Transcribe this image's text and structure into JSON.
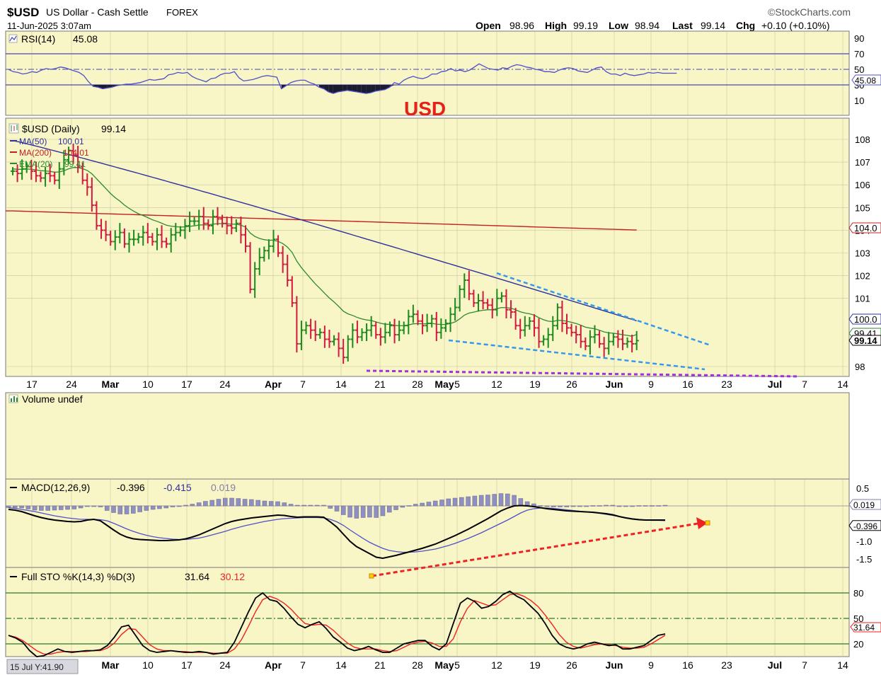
{
  "header": {
    "symbol": "$USD",
    "name": "US Dollar - Cash Settle",
    "exchange": "FOREX",
    "source": "©StockCharts.com",
    "datetime": "11-Jun-2025 3:07am",
    "quote": {
      "open_label": "Open",
      "open": "98.96",
      "high_label": "High",
      "high": "99.19",
      "low_label": "Low",
      "low": "98.94",
      "last_label": "Last",
      "last": "99.14",
      "chg_label": "Chg",
      "chg": "+0.10 (+0.10%)"
    }
  },
  "annotation": "USD",
  "bottom_tag": "15 Jul Y:41.90",
  "colors": {
    "bg": "#f8f5c6",
    "grid": "#c9c6a2",
    "up": "#1d8a1d",
    "down": "#d01a40",
    "ma50": "#3030a0",
    "ma200": "#c42020",
    "ema20": "#2e8a2e",
    "trend": "#3399ee",
    "support": "#a030e0",
    "arrow": "#ee2222",
    "rsi": "#5050c8",
    "macd": "#000000",
    "signal": "#5050c8",
    "hist": "#8f8fc0",
    "stoK": "#000000",
    "stoD": "#ee2222"
  },
  "chart_data": [
    {
      "type": "line",
      "panel": "rsi",
      "legend": [
        "RSI(14)",
        "45.08"
      ],
      "ylim": [
        0,
        100
      ],
      "yticks": [
        90,
        70,
        50,
        30,
        10
      ],
      "levels": [
        70,
        50,
        30
      ],
      "last_label": "45.08",
      "values": [
        50,
        47,
        46,
        44,
        45,
        47,
        46,
        49,
        51,
        50,
        51,
        53,
        52,
        50,
        48,
        46,
        42,
        34,
        28,
        27,
        25,
        26,
        27,
        29,
        30,
        31,
        31,
        32,
        33,
        35,
        37,
        36,
        37,
        38,
        43,
        44,
        46,
        45,
        46,
        41,
        38,
        36,
        34,
        38,
        39,
        43,
        45,
        45,
        47,
        39,
        35,
        36,
        37,
        39,
        41,
        42,
        41,
        40,
        25,
        29,
        33,
        35,
        36,
        36,
        33,
        31,
        27,
        25,
        21,
        19,
        21,
        22,
        23,
        22,
        21,
        20,
        19,
        20,
        22,
        23,
        24,
        27,
        33,
        31,
        36,
        39,
        41,
        39,
        38,
        40,
        44,
        44,
        47,
        48,
        51,
        48,
        49,
        47,
        49,
        53,
        57,
        54,
        51,
        50,
        49,
        52,
        51,
        54,
        56,
        55,
        53,
        52,
        50,
        49,
        47,
        47,
        46,
        49,
        51,
        52,
        51,
        48,
        47,
        46,
        49,
        52,
        53,
        47,
        44,
        44,
        42,
        45,
        43,
        42,
        43,
        44,
        46,
        45,
        46,
        45,
        45,
        45,
        45
      ]
    },
    {
      "type": "candlestick",
      "panel": "price",
      "legend": [
        "$USD (Daily)",
        "99.14"
      ],
      "ylim": [
        97.8,
        108.3
      ],
      "yticks": [
        108,
        107,
        106,
        105,
        104,
        103,
        102,
        101,
        98
      ],
      "x_ticks": [
        "17",
        "24",
        "Mar",
        "10",
        "17",
        "24",
        "Apr",
        "7",
        "14",
        "21",
        "28",
        "May",
        "5",
        "12",
        "19",
        "26",
        "Jun",
        "9",
        "16",
        "23",
        "Jul",
        "7",
        "14"
      ],
      "close": [
        106.6,
        106.5,
        106.7,
        106.8,
        106.6,
        106.4,
        106.3,
        106.5,
        106.4,
        106.2,
        106.7,
        107.1,
        107.5,
        107.3,
        106.8,
        106.2,
        105.9,
        105.1,
        104.2,
        104.0,
        103.8,
        103.5,
        103.7,
        103.9,
        103.4,
        103.6,
        103.6,
        103.7,
        103.9,
        103.7,
        103.5,
        103.8,
        103.5,
        103.4,
        103.8,
        103.9,
        104.0,
        104.2,
        104.4,
        104.4,
        104.6,
        104.3,
        104.2,
        104.6,
        104.5,
        104.3,
        104.2,
        104.1,
        104.3,
        103.8,
        103.3,
        101.4,
        102.3,
        102.8,
        103.1,
        103.3,
        103.6,
        103.0,
        102.5,
        101.8,
        100.8,
        99.0,
        99.6,
        99.8,
        99.6,
        99.4,
        99.5,
        99.2,
        99.1,
        99.2,
        98.8,
        98.4,
        99.2,
        99.6,
        99.3,
        99.5,
        99.6,
        99.8,
        99.4,
        99.3,
        99.5,
        99.8,
        99.4,
        99.6,
        99.8,
        100.2,
        100.3,
        100.0,
        99.8,
        99.9,
        100.1,
        99.5,
        99.7,
        99.9,
        100.3,
        100.6,
        101.4,
        101.8,
        101.2,
        100.8,
        100.9,
        100.8,
        100.7,
        100.5,
        101.0,
        101.1,
        100.5,
        100.4,
        99.8,
        99.6,
        99.8,
        100.0,
        99.7,
        99.1,
        99.2,
        99.4,
        99.8,
        100.6,
        99.9,
        99.7,
        99.5,
        99.4,
        99.1,
        98.9,
        99.3,
        99.4,
        99.0,
        98.8,
        99.1,
        99.3,
        99.2,
        99.0,
        99.1,
        99.0,
        99.14
      ],
      "series": [
        {
          "name": "MA(50)",
          "last": "100.01",
          "start": 107.95,
          "end": 100.01
        },
        {
          "name": "MA(200)",
          "last": "104.01",
          "start": 104.85,
          "end": 104.01
        },
        {
          "name": "EMA(20)",
          "last": "99.41",
          "start": 106.7,
          "end": 99.41
        }
      ],
      "right_labels": {
        "ma200": "104.0",
        "ma50": "100.0",
        "ema": "99.41",
        "last": "99.14"
      },
      "trendlines": [
        {
          "from": [
            102.0,
            102
          ],
          "to": [
            177,
            99.0
          ]
        },
        {
          "from": [
            92,
            99.2
          ],
          "to": [
            176,
            98.0
          ]
        }
      ],
      "support_level": 97.85
    },
    {
      "type": "bar",
      "panel": "volume",
      "legend": [
        "Volume undef"
      ],
      "values": []
    },
    {
      "type": "line",
      "panel": "macd",
      "legend": [
        "MACD(12,26,9)",
        "-0.396",
        "-0.415",
        "0.019"
      ],
      "ylim": [
        -1.7,
        0.7
      ],
      "yticks": [
        "0.5",
        "-1.0",
        "-1.5"
      ],
      "right_labels": {
        "hist": "0.019",
        "macd": "-0.396"
      },
      "macd": [
        -0.1,
        -0.12,
        -0.16,
        -0.22,
        -0.28,
        -0.33,
        -0.37,
        -0.4,
        -0.42,
        -0.44,
        -0.45,
        -0.44,
        -0.4,
        -0.38,
        -0.42,
        -0.55,
        -0.68,
        -0.8,
        -0.88,
        -0.93,
        -0.95,
        -0.96,
        -0.97,
        -0.98,
        -0.98,
        -0.97,
        -0.96,
        -0.93,
        -0.88,
        -0.82,
        -0.74,
        -0.66,
        -0.58,
        -0.5,
        -0.44,
        -0.4,
        -0.37,
        -0.34,
        -0.32,
        -0.3,
        -0.28,
        -0.26,
        -0.27,
        -0.3,
        -0.32,
        -0.31,
        -0.31,
        -0.31,
        -0.32,
        -0.45,
        -0.6,
        -0.8,
        -1.0,
        -1.15,
        -1.25,
        -1.35,
        -1.45,
        -1.48,
        -1.44,
        -1.4,
        -1.35,
        -1.3,
        -1.25,
        -1.2,
        -1.14,
        -1.08,
        -1.0,
        -0.92,
        -0.84,
        -0.75,
        -0.66,
        -0.56,
        -0.46,
        -0.36,
        -0.25,
        -0.14,
        -0.06,
        0.0,
        0.01,
        0.0,
        -0.02,
        -0.05,
        -0.08,
        -0.1,
        -0.12,
        -0.14,
        -0.15,
        -0.16,
        -0.17,
        -0.18,
        -0.2,
        -0.22,
        -0.25,
        -0.3,
        -0.34,
        -0.37,
        -0.39,
        -0.4,
        -0.4,
        -0.4,
        -0.4
      ],
      "signal": [
        -0.05,
        -0.07,
        -0.1,
        -0.13,
        -0.16,
        -0.2,
        -0.24,
        -0.28,
        -0.31,
        -0.34,
        -0.36,
        -0.38,
        -0.38,
        -0.38,
        -0.39,
        -0.42,
        -0.49,
        -0.57,
        -0.65,
        -0.72,
        -0.78,
        -0.83,
        -0.87,
        -0.9,
        -0.92,
        -0.94,
        -0.95,
        -0.95,
        -0.93,
        -0.91,
        -0.87,
        -0.82,
        -0.77,
        -0.72,
        -0.66,
        -0.61,
        -0.56,
        -0.52,
        -0.48,
        -0.44,
        -0.41,
        -0.38,
        -0.36,
        -0.35,
        -0.34,
        -0.33,
        -0.33,
        -0.33,
        -0.34,
        -0.38,
        -0.45,
        -0.55,
        -0.68,
        -0.8,
        -0.92,
        -1.03,
        -1.12,
        -1.2,
        -1.26,
        -1.29,
        -1.31,
        -1.31,
        -1.3,
        -1.28,
        -1.25,
        -1.22,
        -1.17,
        -1.12,
        -1.06,
        -0.99,
        -0.92,
        -0.84,
        -0.76,
        -0.67,
        -0.58,
        -0.49,
        -0.4,
        -0.3,
        -0.2,
        -0.12,
        -0.08,
        -0.06,
        -0.06,
        -0.07,
        -0.09,
        -0.11,
        -0.13,
        -0.15,
        -0.17,
        -0.19,
        -0.21,
        -0.24,
        -0.27,
        -0.3,
        -0.33,
        -0.36,
        -0.38,
        -0.4,
        -0.41,
        -0.41,
        -0.415
      ],
      "hist": [
        -0.05,
        -0.05,
        -0.06,
        -0.09,
        -0.12,
        -0.13,
        -0.13,
        -0.12,
        -0.11,
        -0.1,
        -0.09,
        -0.06,
        -0.02,
        0.0,
        -0.03,
        -0.13,
        -0.19,
        -0.23,
        -0.23,
        -0.21,
        -0.17,
        -0.13,
        -0.1,
        -0.08,
        -0.06,
        -0.03,
        -0.01,
        0.02,
        0.05,
        0.09,
        0.13,
        0.16,
        0.19,
        0.22,
        0.22,
        0.21,
        0.19,
        0.18,
        0.16,
        0.14,
        0.13,
        0.12,
        0.09,
        0.05,
        0.02,
        0.02,
        0.02,
        0.02,
        0.02,
        -0.07,
        -0.15,
        -0.25,
        -0.32,
        -0.35,
        -0.33,
        -0.32,
        -0.33,
        -0.28,
        -0.18,
        -0.11,
        -0.04,
        0.01,
        0.05,
        0.08,
        0.11,
        0.14,
        0.17,
        0.2,
        0.22,
        0.24,
        0.26,
        0.28,
        0.3,
        0.31,
        0.33,
        0.35,
        0.34,
        0.3,
        0.21,
        0.12,
        0.06,
        0.01,
        -0.02,
        -0.03,
        -0.03,
        -0.03,
        -0.02,
        -0.01,
        0.0,
        0.01,
        0.01,
        0.02,
        0.02,
        0.0,
        -0.01,
        -0.01,
        0.01,
        0.01,
        0.01,
        0.01,
        0.019
      ],
      "arrow": {
        "from_index": 53,
        "from_value": -1.55,
        "to_index": 101,
        "to_value": -0.4
      }
    },
    {
      "type": "line",
      "panel": "stochastic",
      "legend": [
        "Full STO %K(14,3) %D(3)",
        "31.64",
        "30.12"
      ],
      "ylim": [
        0,
        100
      ],
      "yticks": [
        "80",
        "50",
        "20"
      ],
      "levels": [
        80,
        50,
        20
      ],
      "right_label": "31.64",
      "k": [
        30,
        27,
        22,
        12,
        5,
        6,
        10,
        14,
        11,
        10,
        11,
        12,
        12,
        13,
        18,
        28,
        40,
        42,
        30,
        18,
        12,
        10,
        11,
        12,
        11,
        10,
        10,
        11,
        10,
        8,
        9,
        10,
        22,
        40,
        58,
        74,
        80,
        72,
        70,
        62,
        52,
        43,
        39,
        43,
        46,
        38,
        28,
        22,
        15,
        12,
        14,
        17,
        13,
        10,
        10,
        15,
        20,
        22,
        24,
        24,
        17,
        13,
        20,
        44,
        68,
        74,
        70,
        62,
        64,
        70,
        78,
        82,
        76,
        72,
        64,
        56,
        44,
        30,
        20,
        16,
        14,
        16,
        20,
        22,
        20,
        18,
        19,
        14,
        14,
        16,
        18,
        24,
        30,
        31.64
      ],
      "d": [
        30,
        28,
        24,
        18,
        12,
        8,
        8,
        10,
        11,
        11,
        11,
        11,
        12,
        12,
        15,
        21,
        31,
        38,
        37,
        28,
        19,
        14,
        12,
        12,
        11,
        11,
        10,
        10,
        10,
        9,
        9,
        9,
        14,
        25,
        41,
        58,
        72,
        76,
        73,
        68,
        61,
        52,
        44,
        42,
        43,
        42,
        36,
        28,
        21,
        16,
        14,
        14,
        14,
        12,
        11,
        12,
        16,
        20,
        22,
        23,
        21,
        17,
        17,
        26,
        46,
        62,
        71,
        68,
        65,
        66,
        72,
        78,
        79,
        76,
        71,
        64,
        54,
        43,
        31,
        22,
        17,
        15,
        17,
        19,
        20,
        19,
        18,
        16,
        15,
        15,
        16,
        20,
        25,
        30.12
      ]
    }
  ]
}
